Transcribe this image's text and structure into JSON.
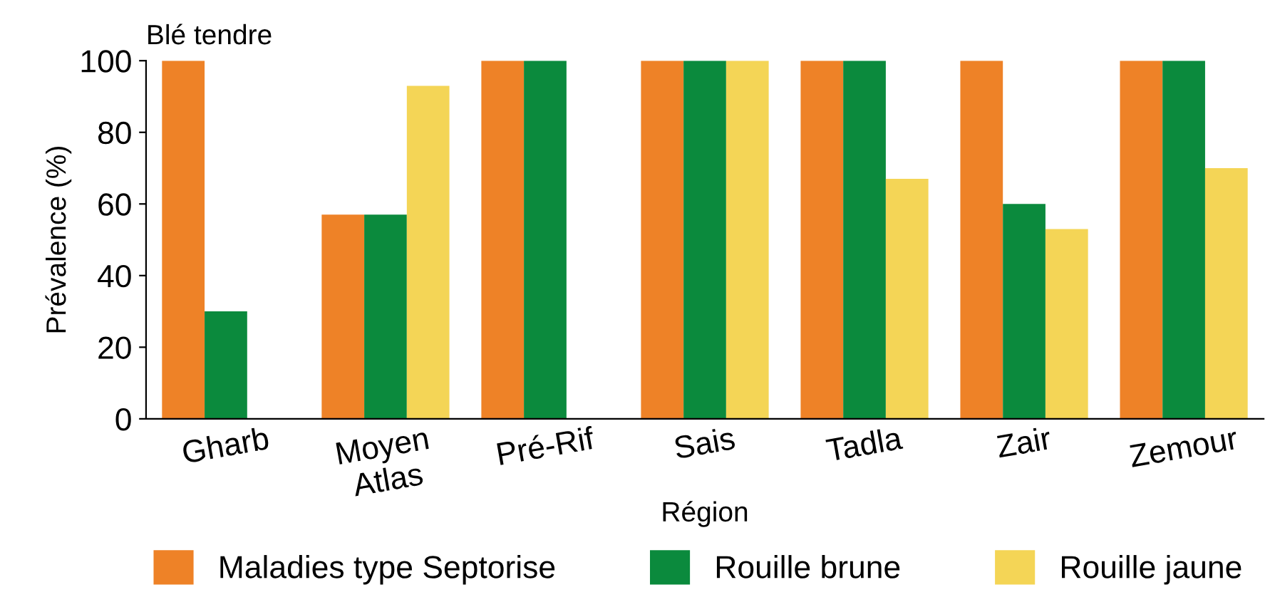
{
  "chart_data": {
    "type": "bar",
    "title": "Blé tendre",
    "xlabel": "Région",
    "ylabel": "Prévalence (%)",
    "categories": [
      "Gharb",
      "Moyen\nAtlas",
      "Pré-Rif",
      "Sais",
      "Tadla",
      "Zair",
      "Zemour"
    ],
    "series": [
      {
        "name": "Maladies type Septorise",
        "color": "#ee8227",
        "values": [
          100,
          57,
          100,
          100,
          100,
          100,
          100
        ]
      },
      {
        "name": "Rouille brune",
        "color": "#0b8a3d",
        "values": [
          30,
          57,
          100,
          100,
          100,
          60,
          100
        ]
      },
      {
        "name": "Rouille jaune",
        "color": "#f4d556",
        "values": [
          0,
          93,
          0,
          100,
          67,
          53,
          70
        ]
      }
    ],
    "ylim": [
      0,
      100
    ],
    "yticks": [
      0,
      20,
      40,
      60,
      80,
      100
    ],
    "grid": false,
    "legend": "bottom"
  }
}
